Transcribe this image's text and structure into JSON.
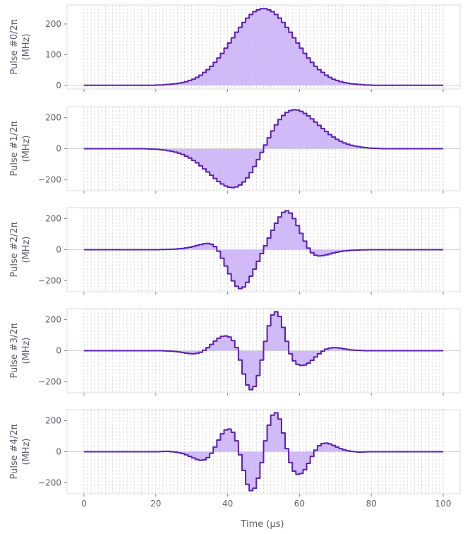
{
  "chart_data": {
    "type": "line",
    "style": "step",
    "xlabel": "Time (µs)",
    "xlim": [
      -4.7,
      104.7
    ],
    "xticks": [
      0,
      20,
      40,
      60,
      80,
      100
    ],
    "x_segments": 100,
    "grid": "vertical dashed every 1 µs",
    "colors": {
      "line": "#5b1fb3",
      "fill": "#c9aef7",
      "grid": "#d4d4dc",
      "frame": "#dcdce2",
      "zero": "#cfcfd6"
    },
    "panels": [
      {
        "ylabel_line1": "Pulse #0/2π",
        "ylabel_line2": "(MHz)",
        "ylim": [
          -12,
          262
        ],
        "yticks": [
          0,
          100,
          200
        ],
        "profile": [
          250,
          246,
          240,
          231,
          219,
          205,
          189,
          173,
          155,
          138,
          121,
          104,
          89,
          75,
          62,
          51,
          42,
          33,
          26,
          20,
          16,
          12,
          9,
          7,
          5,
          4,
          3,
          2,
          1,
          1,
          0,
          0,
          0,
          0,
          0,
          0,
          0,
          0,
          0,
          0,
          0,
          0,
          0,
          0,
          0,
          0,
          0,
          0,
          0,
          0
        ],
        "symmetry": "even"
      },
      {
        "ylabel_line1": "Pulse #1/2π",
        "ylabel_line2": "(MHz)",
        "ylim": [
          -270,
          270
        ],
        "yticks": [
          -200,
          0,
          200
        ],
        "profile": [
          24,
          70,
          114,
          153,
          187,
          213,
          233,
          245,
          250,
          248,
          240,
          227,
          211,
          192,
          171,
          150,
          130,
          110,
          91,
          75,
          60,
          48,
          37,
          29,
          22,
          17,
          13,
          9,
          7,
          4,
          3,
          2,
          1,
          0,
          0,
          0,
          0,
          0,
          0,
          0,
          0,
          0,
          0,
          0,
          0,
          0,
          0,
          0,
          0,
          0
        ],
        "symmetry": "odd"
      },
      {
        "ylabel_line1": "Pulse #2/2π",
        "ylabel_line2": "(MHz)",
        "ylim": [
          -270,
          270
        ],
        "yticks": [
          -200,
          0,
          200
        ],
        "profile": [
          25,
          75,
          125,
          170,
          210,
          240,
          250,
          235,
          200,
          155,
          105,
          55,
          10,
          -20,
          -35,
          -40,
          -38,
          -33,
          -27,
          -21,
          -16,
          -12,
          -8,
          -6,
          -4,
          -3,
          -2,
          -1,
          -1,
          0,
          0,
          0,
          0,
          0,
          0,
          0,
          0,
          0,
          0,
          0,
          0,
          0,
          0,
          0,
          0,
          0,
          0,
          0,
          0,
          0
        ],
        "symmetry": "odd"
      },
      {
        "ylabel_line1": "Pulse #3/2π",
        "ylabel_line2": "(MHz)",
        "ylim": [
          -270,
          270
        ],
        "yticks": [
          -200,
          0,
          200
        ],
        "profile": [
          60,
          160,
          230,
          250,
          220,
          150,
          60,
          -20,
          -65,
          -88,
          -95,
          -92,
          -80,
          -62,
          -40,
          -20,
          -3,
          10,
          17,
          20,
          19,
          16,
          12,
          8,
          5,
          3,
          2,
          1,
          0,
          0,
          0,
          0,
          0,
          0,
          0,
          0,
          0,
          0,
          0,
          0,
          0,
          0,
          0,
          0,
          0,
          0,
          0,
          0,
          0,
          0
        ],
        "symmetry": "odd"
      },
      {
        "ylabel_line1": "Pulse #4/2π",
        "ylabel_line2": "(MHz)",
        "ylim": [
          -270,
          270
        ],
        "yticks": [
          -200,
          0,
          200
        ],
        "profile": [
          70,
          170,
          235,
          250,
          210,
          120,
          20,
          -70,
          -125,
          -145,
          -140,
          -115,
          -75,
          -30,
          10,
          38,
          52,
          55,
          50,
          40,
          30,
          20,
          12,
          6,
          2,
          0,
          -2,
          -2,
          -1,
          0,
          0,
          0,
          0,
          0,
          0,
          0,
          0,
          0,
          0,
          0,
          0,
          0,
          0,
          0,
          0,
          0,
          0,
          0,
          0,
          0
        ],
        "symmetry": "odd"
      }
    ]
  }
}
